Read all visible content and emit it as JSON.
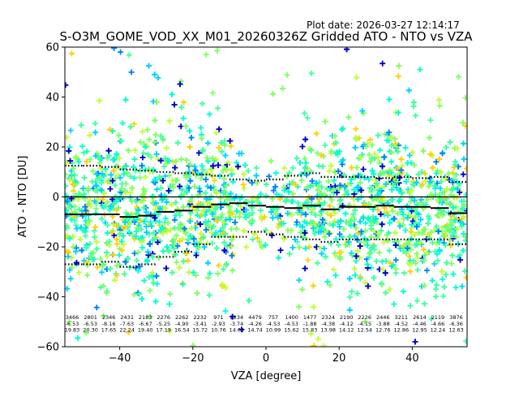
{
  "chart_data": {
    "type": "scatter",
    "plot_date": "Plot date: 2026-03-27 12:14:17",
    "title": "S-O3M_GOME_VOD_XX_M01_20260326Z Gridded ATO - NTO vs VZA",
    "xlabel": "VZA [degree]",
    "ylabel": "ATO - NTO [DU]",
    "xlim": [
      -55,
      55
    ],
    "ylim": [
      -60,
      60
    ],
    "xticks": [
      -40,
      -20,
      0,
      20,
      40
    ],
    "yticks": [
      -60,
      -40,
      -20,
      0,
      20,
      40,
      60
    ],
    "xtick_labels": [
      "−40",
      "−20",
      "0",
      "20",
      "40"
    ],
    "ytick_labels": [
      "−60",
      "−40",
      "−20",
      "0",
      "20",
      "40",
      "60"
    ],
    "marker": "+",
    "colors": [
      "#0000cc",
      "#0080ff",
      "#00d4ff",
      "#00ffd0",
      "#40ffa0",
      "#80ff60",
      "#c0ff30",
      "#ffd000"
    ],
    "bins_center": [
      -53,
      -48,
      -43,
      -38,
      -33,
      -28,
      -23,
      -18,
      -13,
      -8,
      -3,
      2,
      7,
      12,
      17,
      22,
      27,
      32,
      37,
      42,
      47,
      52
    ],
    "bin_stats": {
      "count": [
        "3466",
        "2801",
        "2346",
        "2431",
        "2183",
        "2276",
        "2262",
        "2232",
        "971",
        "2234",
        "4479",
        "757",
        "1400",
        "1477",
        "2324",
        "2190",
        "2226",
        "2446",
        "3211",
        "2614",
        "2119",
        "3876"
      ],
      "mean": [
        "-6.53",
        "-6.53",
        "-8.16",
        "-7.63",
        "-6.67",
        "-5.25",
        "-4.90",
        "-3.41",
        "-2.93",
        "-3.74",
        "-4.26",
        "-4.53",
        "-4.53",
        "-1.88",
        "-4.38",
        "-4.12",
        "-4.15",
        "-3.88",
        "-4.52",
        "-4.46",
        "-4.66",
        "-6.36"
      ],
      "std": [
        "19.83",
        "20.30",
        "17.65",
        "22.24",
        "19.40",
        "17.19",
        "16.54",
        "15.72",
        "10.76",
        "14.01",
        "14.74",
        "10.99",
        "15.62",
        "15.83",
        "13.98",
        "14.12",
        "12.54",
        "12.76",
        "12.86",
        "12.95",
        "12.24",
        "12.63"
      ]
    },
    "series": [
      {
        "name": "mean",
        "style": "solid black step",
        "x": [
          -55,
          -50,
          -45,
          -40,
          -35,
          -30,
          -25,
          -20,
          -15,
          -10,
          -5,
          0,
          5,
          10,
          15,
          20,
          25,
          30,
          35,
          40,
          45,
          50,
          55
        ],
        "y": [
          -7,
          -7,
          -7,
          -8,
          -7.5,
          -6,
          -5.5,
          -4,
          -3,
          -2.5,
          -3.5,
          -4,
          -4.5,
          -3.5,
          -5,
          -4,
          -4,
          -3.5,
          -4,
          -4,
          -4.5,
          -6.5,
          -6.5
        ]
      },
      {
        "name": "mean + std",
        "style": "dotted black step",
        "x": [
          -55,
          -50,
          -45,
          -40,
          -35,
          -30,
          -25,
          -20,
          -15,
          -10,
          -5,
          0,
          5,
          10,
          15,
          20,
          25,
          30,
          35,
          40,
          45,
          50,
          55
        ],
        "y": [
          12.5,
          12.5,
          12,
          11,
          10.5,
          10,
          9.5,
          9,
          8.5,
          7,
          6.5,
          7,
          8.5,
          9.5,
          8,
          8,
          8,
          7.5,
          8,
          7.5,
          8,
          6,
          6
        ]
      },
      {
        "name": "mean - std",
        "style": "dotted black step",
        "x": [
          -55,
          -50,
          -45,
          -40,
          -35,
          -30,
          -25,
          -20,
          -15,
          -10,
          -5,
          0,
          5,
          10,
          15,
          20,
          25,
          30,
          35,
          40,
          45,
          50,
          55
        ],
        "y": [
          -27,
          -27,
          -26,
          -28,
          -27,
          -24,
          -22,
          -19,
          -16,
          -16,
          -14,
          -15,
          -16,
          -17,
          -18,
          -17,
          -17,
          -17,
          -17,
          -17,
          -17,
          -19,
          -19
        ]
      }
    ],
    "zero_line": 0
  }
}
